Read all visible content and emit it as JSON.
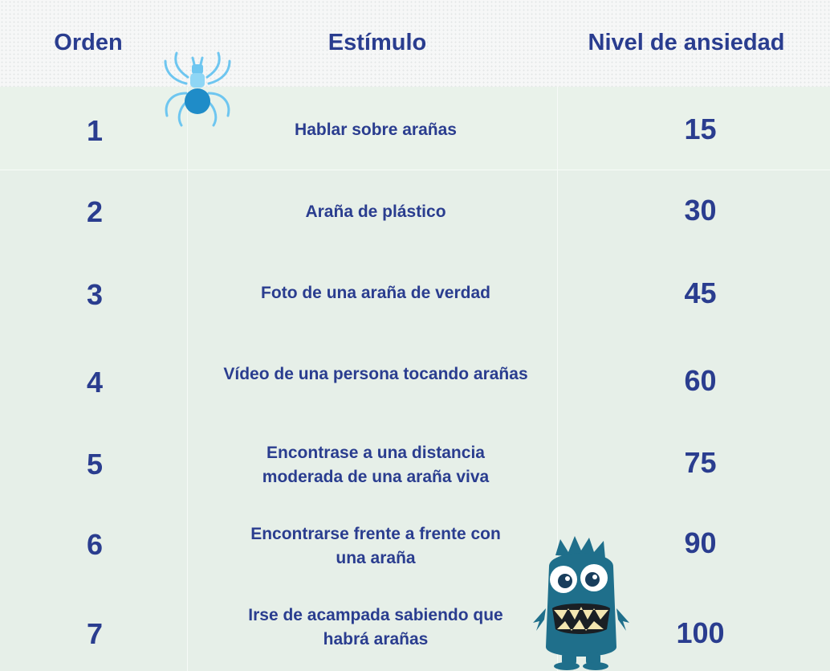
{
  "headers": {
    "orden": "Orden",
    "estimulo": "Estímulo",
    "nivel": "Nivel de ansiedad"
  },
  "rows": [
    {
      "orden": "1",
      "estimulo": "Hablar sobre arañas",
      "nivel": "15"
    },
    {
      "orden": "2",
      "estimulo": "Araña de plástico",
      "nivel": "30"
    },
    {
      "orden": "3",
      "estimulo": "Foto de una araña de verdad",
      "nivel": "45"
    },
    {
      "orden": "4",
      "estimulo": "Vídeo de una persona tocando arañas",
      "nivel": "60"
    },
    {
      "orden": "5",
      "estimulo": "Encontrase a una distancia moderada de una araña viva",
      "nivel": "75"
    },
    {
      "orden": "6",
      "estimulo": "Encontrarse frente a frente con una araña",
      "nivel": "90"
    },
    {
      "orden": "7",
      "estimulo": "Irse de acampada sabiendo que habrá arañas",
      "nivel": "100"
    }
  ],
  "icons": {
    "spider": "spider-icon",
    "monster": "monster-icon"
  },
  "colors": {
    "text": "#2a3d8f",
    "table_bg": "#e6efe8",
    "header_bg": "#f6f7f7",
    "spider": "#6ec6f0",
    "monster": "#1f6f8b"
  }
}
